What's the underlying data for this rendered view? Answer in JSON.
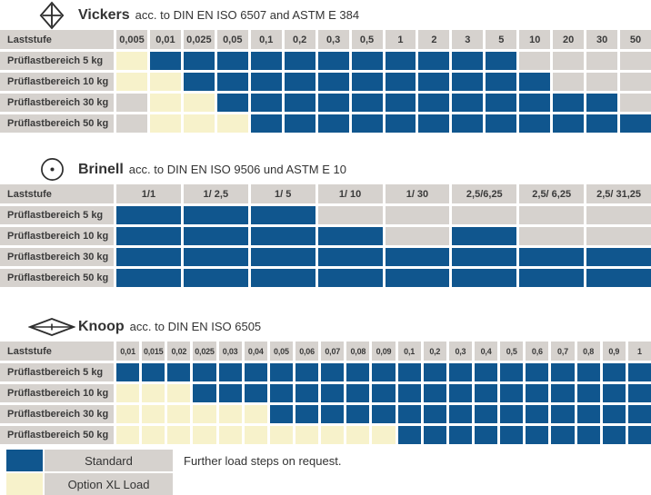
{
  "colors": {
    "standard": "#10568e",
    "xl": "#f7f2cb",
    "empty": "#d6d2ce",
    "text": "#3a3a3a"
  },
  "legend": {
    "standard_label": "Standard",
    "xl_label": "Option XL Load",
    "note": "Further load steps on request."
  },
  "tables": [
    {
      "title": "Vickers",
      "subtitle": "acc. to DIN EN ISO 6507 and ASTM E 384",
      "row_header": "Laststufe",
      "columns": [
        "0,005",
        "0,01",
        "0,025",
        "0,05",
        "0,1",
        "0,2",
        "0,3",
        "0,5",
        "1",
        "2",
        "3",
        "5",
        "10",
        "20",
        "30",
        "50"
      ],
      "rows": [
        {
          "label": "Prüflastbereich 5 kg",
          "cells": [
            "xl",
            "std",
            "std",
            "std",
            "std",
            "std",
            "std",
            "std",
            "std",
            "std",
            "std",
            "std",
            "none",
            "none",
            "none",
            "none"
          ]
        },
        {
          "label": "Prüflastbereich 10 kg",
          "cells": [
            "xl",
            "xl",
            "std",
            "std",
            "std",
            "std",
            "std",
            "std",
            "std",
            "std",
            "std",
            "std",
            "std",
            "none",
            "none",
            "none"
          ]
        },
        {
          "label": "Prüflastbereich 30 kg",
          "cells": [
            "none",
            "xl",
            "xl",
            "std",
            "std",
            "std",
            "std",
            "std",
            "std",
            "std",
            "std",
            "std",
            "std",
            "std",
            "std",
            "none"
          ]
        },
        {
          "label": "Prüflastbereich 50 kg",
          "cells": [
            "none",
            "xl",
            "xl",
            "xl",
            "std",
            "std",
            "std",
            "std",
            "std",
            "std",
            "std",
            "std",
            "std",
            "std",
            "std",
            "std"
          ]
        }
      ]
    },
    {
      "title": "Brinell",
      "subtitle": "acc. to DIN EN ISO 9506 und ASTM E 10",
      "row_header": "Laststufe",
      "columns": [
        "1/1",
        "1/ 2,5",
        "1/ 5",
        "1/ 10",
        "1/ 30",
        "2,5/6,25",
        "2,5/ 6,25",
        "2,5/ 31,25"
      ],
      "rows": [
        {
          "label": "Prüflastbereich 5 kg",
          "cells": [
            "std",
            "std",
            "std",
            "none",
            "none",
            "none",
            "none",
            "none"
          ]
        },
        {
          "label": "Prüflastbereich 10 kg",
          "cells": [
            "std",
            "std",
            "std",
            "std",
            "none",
            "std",
            "none",
            "none"
          ]
        },
        {
          "label": "Prüflastbereich 30 kg",
          "cells": [
            "std",
            "std",
            "std",
            "std",
            "std",
            "std",
            "std",
            "std"
          ]
        },
        {
          "label": "Prüflastbereich 50 kg",
          "cells": [
            "std",
            "std",
            "std",
            "std",
            "std",
            "std",
            "std",
            "std"
          ]
        }
      ]
    },
    {
      "title": "Knoop",
      "subtitle": "acc. to DIN EN ISO 6505",
      "row_header": "Laststufe",
      "columns": [
        "0,01",
        "0,015",
        "0,02",
        "0,025",
        "0,03",
        "0,04",
        "0,05",
        "0,06",
        "0,07",
        "0,08",
        "0,09",
        "0,1",
        "0,2",
        "0,3",
        "0,4",
        "0,5",
        "0,6",
        "0,7",
        "0,8",
        "0,9",
        "1"
      ],
      "rows": [
        {
          "label": "Prüflastbereich 5 kg",
          "cells": [
            "std",
            "std",
            "std",
            "std",
            "std",
            "std",
            "std",
            "std",
            "std",
            "std",
            "std",
            "std",
            "std",
            "std",
            "std",
            "std",
            "std",
            "std",
            "std",
            "std",
            "std"
          ]
        },
        {
          "label": "Prüflastbereich 10 kg",
          "cells": [
            "xl",
            "xl",
            "xl",
            "std",
            "std",
            "std",
            "std",
            "std",
            "std",
            "std",
            "std",
            "std",
            "std",
            "std",
            "std",
            "std",
            "std",
            "std",
            "std",
            "std",
            "std"
          ]
        },
        {
          "label": "Prüflastbereich 30 kg",
          "cells": [
            "xl",
            "xl",
            "xl",
            "xl",
            "xl",
            "xl",
            "std",
            "std",
            "std",
            "std",
            "std",
            "std",
            "std",
            "std",
            "std",
            "std",
            "std",
            "std",
            "std",
            "std",
            "std"
          ]
        },
        {
          "label": "Prüflastbereich 50 kg",
          "cells": [
            "xl",
            "xl",
            "xl",
            "xl",
            "xl",
            "xl",
            "xl",
            "xl",
            "xl",
            "xl",
            "xl",
            "std",
            "std",
            "std",
            "std",
            "std",
            "std",
            "std",
            "std",
            "std",
            "std"
          ]
        }
      ]
    }
  ]
}
